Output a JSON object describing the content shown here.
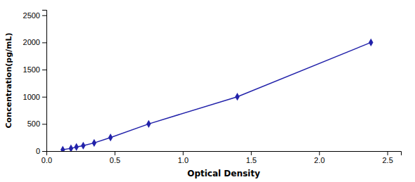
{
  "chart_data": {
    "type": "line",
    "x": [
      0.12,
      0.18,
      0.22,
      0.27,
      0.35,
      0.47,
      0.75,
      1.4,
      2.38
    ],
    "values": [
      25,
      50,
      75,
      100,
      150,
      250,
      500,
      1000,
      2000
    ],
    "color": "#2222aa",
    "marker": "diamond",
    "xlabel": "Optical Density",
    "ylabel": "Concentration(pg/mL)",
    "xlim": [
      0,
      2.6
    ],
    "ylim": [
      0,
      2600
    ],
    "xticks": [
      {
        "value": 0,
        "label": "0.0"
      },
      0.5,
      {
        "value": 1.0,
        "label": "1.0"
      },
      1.5,
      {
        "value": 2.0,
        "label": "2.0"
      },
      2.5
    ],
    "yticks": [
      0,
      500,
      1000,
      1500,
      2000,
      2500
    ]
  }
}
